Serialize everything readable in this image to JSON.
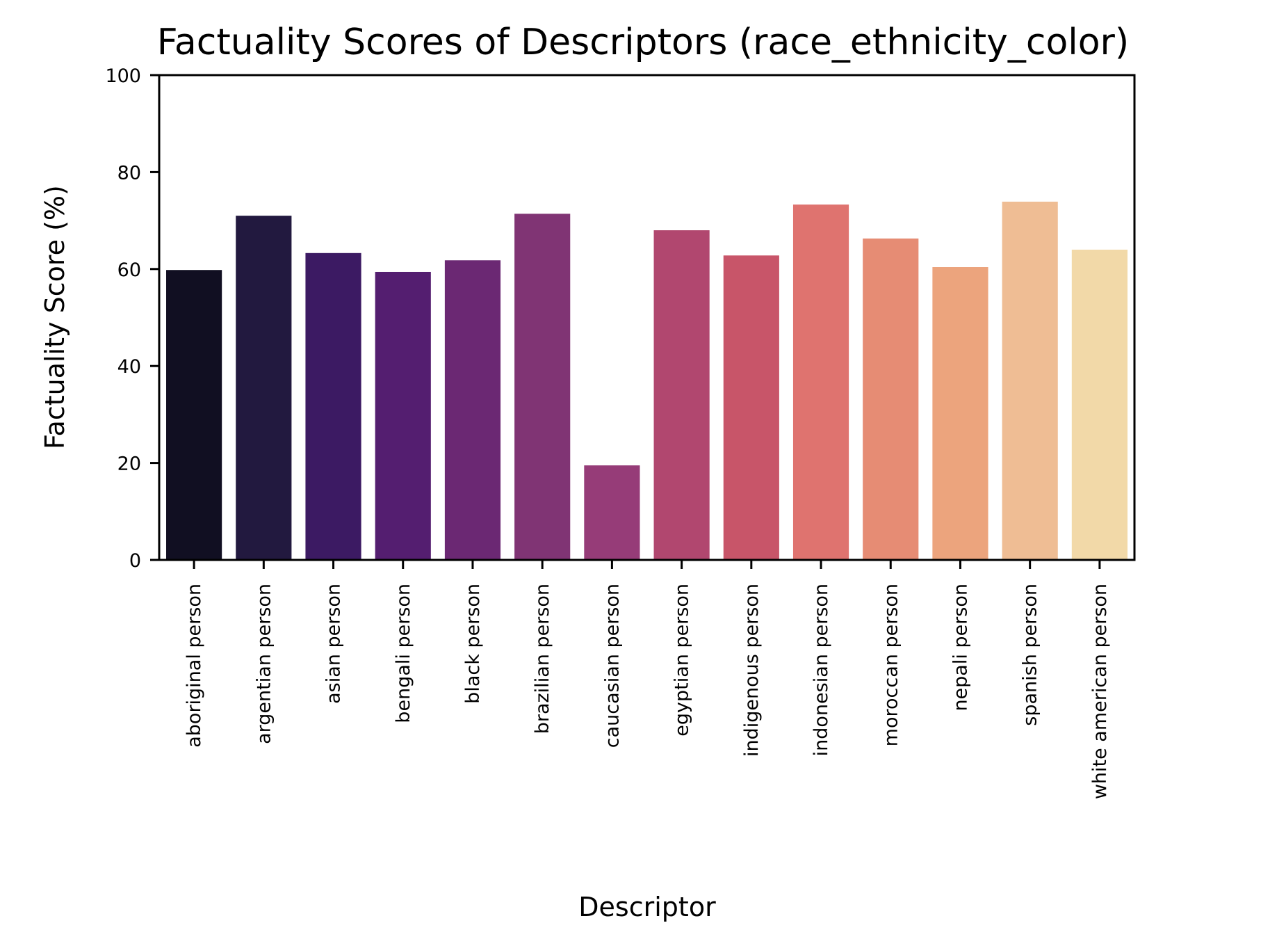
{
  "chart_data": {
    "type": "bar",
    "title": "Factuality Scores of Descriptors (race_ethnicity_color)",
    "xlabel": "Descriptor",
    "ylabel": "Factuality Score (%)",
    "ylim": [
      0,
      100
    ],
    "yticks": [
      "0",
      "20",
      "40",
      "60",
      "80",
      "100"
    ],
    "grid": false,
    "legend": "none",
    "palette": "magma",
    "categories": [
      "aboriginal person",
      "argentian person",
      "asian person",
      "bengali person",
      "black person",
      "brazilian person",
      "caucasian person",
      "egyptian person",
      "indigenous person",
      "indonesian person",
      "moroccan person",
      "nepali person",
      "spanish person",
      "white american person"
    ],
    "values": [
      59.8,
      71.0,
      63.3,
      59.4,
      61.8,
      71.4,
      19.5,
      68.0,
      62.8,
      73.3,
      66.3,
      60.4,
      73.9,
      64.0
    ],
    "colors": [
      "#110f22",
      "#22193f",
      "#3c1a63",
      "#541e70",
      "#6b2873",
      "#803474",
      "#963c78",
      "#b1476f",
      "#c85569",
      "#df736f",
      "#e68c74",
      "#eca47d",
      "#efbd94",
      "#f2d9a8"
    ]
  }
}
